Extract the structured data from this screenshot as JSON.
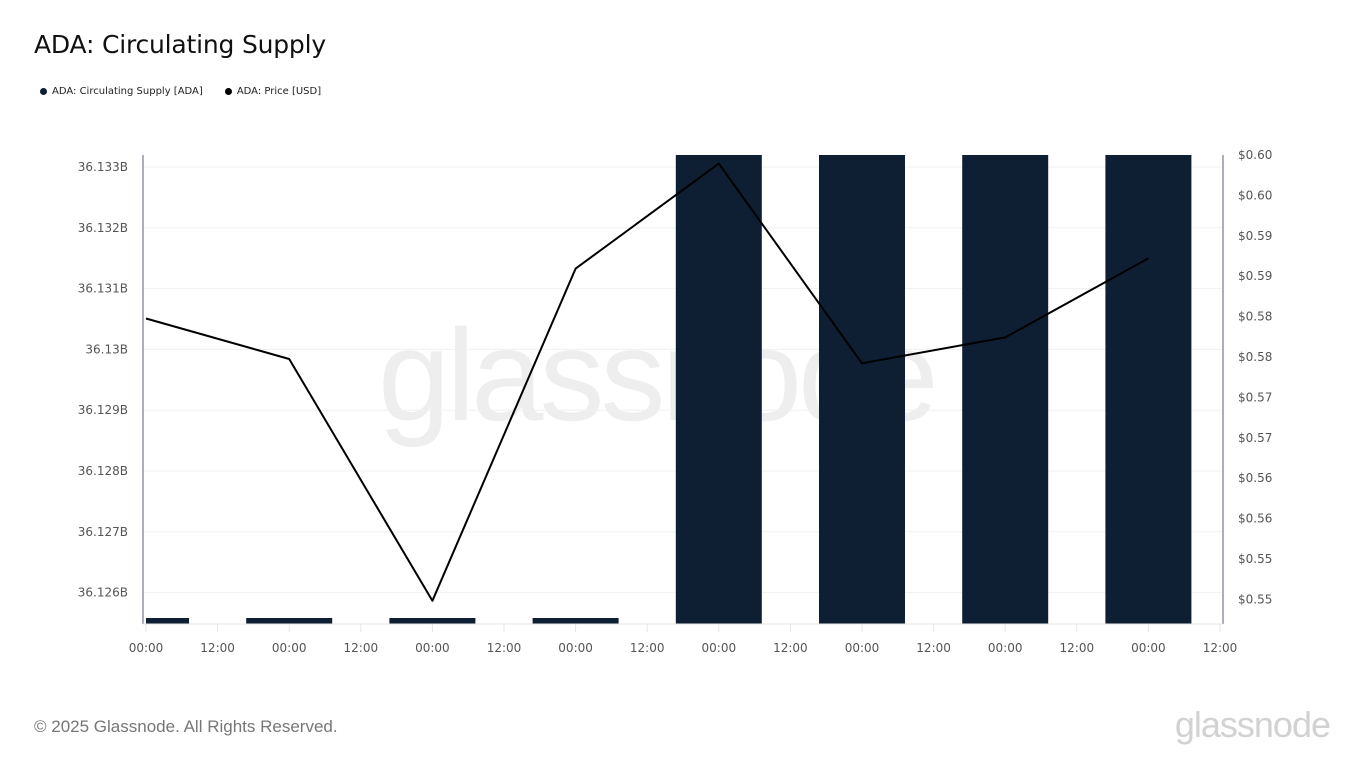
{
  "title": "ADA: Circulating Supply",
  "legend": [
    {
      "label": "ADA: Circulating Supply [ADA]",
      "color": "#0f1f33"
    },
    {
      "label": "ADA: Price [USD]",
      "color": "#000000"
    }
  ],
  "watermark": "glassnode",
  "footer": {
    "copyright": "© 2025 Glassnode. All Rights Reserved.",
    "brand": "glassnode"
  },
  "chart_data": {
    "type": "bar+line",
    "title": "ADA: Circulating Supply",
    "x_tick_labels": [
      "00:00",
      "12:00",
      "00:00",
      "12:00",
      "00:00",
      "12:00",
      "00:00",
      "12:00",
      "00:00",
      "12:00",
      "00:00",
      "12:00",
      "00:00",
      "12:00",
      "00:00",
      "12:00"
    ],
    "left_axis": {
      "label": "Circulating Supply [ADA]",
      "ticks": [
        "36.133B",
        "36.132B",
        "36.131B",
        "36.13B",
        "36.129B",
        "36.128B",
        "36.127B",
        "36.126B"
      ],
      "ylim": [
        36.12555,
        36.1332
      ]
    },
    "right_axis": {
      "label": "Price [USD]",
      "ticks": [
        "$0.60",
        "$0.60",
        "$0.59",
        "$0.59",
        "$0.58",
        "$0.58",
        "$0.57",
        "$0.57",
        "$0.56",
        "$0.56",
        "$0.55",
        "$0.55"
      ],
      "ylim": [
        0.5475,
        0.602
      ]
    },
    "series": [
      {
        "name": "ADA: Circulating Supply [ADA]",
        "type": "bar",
        "color": "#0f1f33",
        "x": [
          "day1 00:00",
          "day2 00:00",
          "day3 00:00",
          "day4 00:00",
          "day5 00:00",
          "day6 00:00",
          "day7 00:00",
          "day8 00:00"
        ],
        "values": [
          36.12556,
          36.12556,
          36.12556,
          36.12556,
          36.1332,
          36.1332,
          36.1332,
          36.1332
        ]
      },
      {
        "name": "ADA: Price [USD]",
        "type": "line",
        "color": "#000000",
        "x": [
          "day1 00:00",
          "day2 00:00",
          "day3 00:00",
          "day4 00:00",
          "day5 00:00",
          "day6 00:00",
          "day7 00:00",
          "day8 00:00"
        ],
        "values": [
          0.583,
          0.5783,
          0.5502,
          0.5888,
          0.601,
          0.5778,
          0.5808,
          0.59
        ]
      }
    ],
    "grid": true,
    "legend_position": "top-left"
  }
}
